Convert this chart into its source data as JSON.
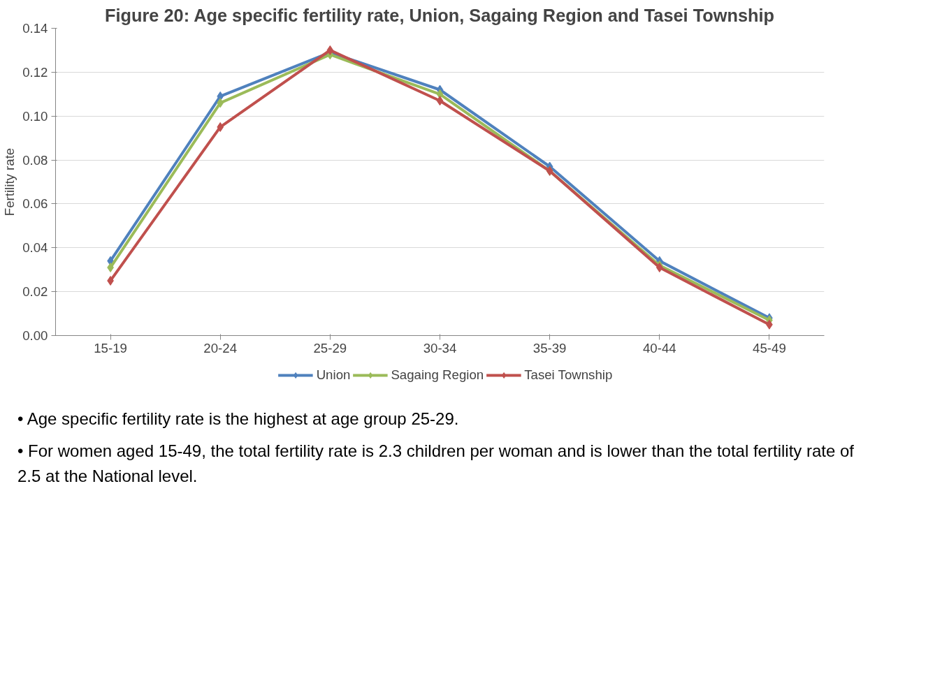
{
  "chart_data": {
    "type": "line",
    "title": "Figure 20: Age specific fertility rate, Union, Sagaing Region and Tasei Township",
    "ylabel": "Fertility rate",
    "categories": [
      "15-19",
      "20-24",
      "25-29",
      "30-34",
      "35-39",
      "40-44",
      "45-49"
    ],
    "series": [
      {
        "name": "Union",
        "color": "#4f81bd",
        "values": [
          0.034,
          0.109,
          0.129,
          0.112,
          0.077,
          0.034,
          0.008
        ]
      },
      {
        "name": "Sagaing Region",
        "color": "#9bbb59",
        "values": [
          0.031,
          0.106,
          0.128,
          0.11,
          0.075,
          0.032,
          0.007
        ]
      },
      {
        "name": "Tasei Township",
        "color": "#c0504d",
        "values": [
          0.025,
          0.095,
          0.13,
          0.107,
          0.075,
          0.031,
          0.005
        ]
      }
    ],
    "ylim": [
      0,
      0.14
    ],
    "yticks": [
      {
        "value": 0,
        "label": "0.00"
      },
      {
        "value": 0.02,
        "label": "0.02"
      },
      {
        "value": 0.04,
        "label": "0.04"
      },
      {
        "value": 0.06,
        "label": "0.06"
      },
      {
        "value": 0.08,
        "label": "0.08"
      },
      {
        "value": 0.1,
        "label": "0.10"
      },
      {
        "value": 0.12,
        "label": "0.12"
      },
      {
        "value": 0.14,
        "label": "0.14"
      }
    ],
    "grid": "y",
    "legend": "bottom",
    "marker": "diamond",
    "line_style": "solid",
    "annotations": [
      "• Age specific fertility rate is the highest at age group 25-29.",
      "• For women aged 15-49, the total fertility rate is 2.3 children per woman and is lower than the total fertility rate of 2.5 at the National level."
    ]
  }
}
